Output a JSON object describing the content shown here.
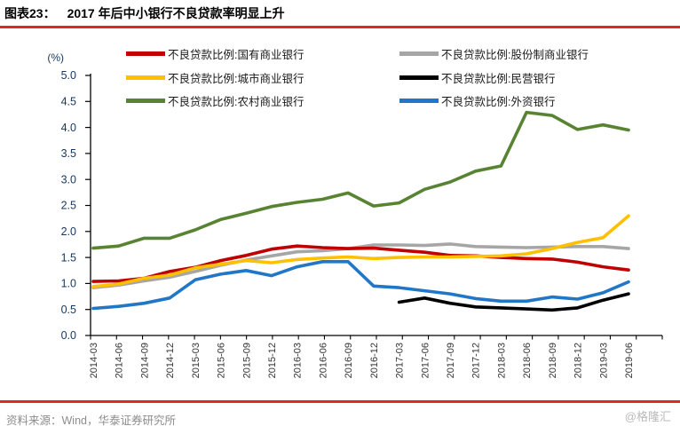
{
  "page": {
    "background": "#ffffff",
    "accent_rule_color": "#e02b14"
  },
  "header": {
    "label": "图表23：",
    "title": "2017 年后中小银行不良贷款率明显上升"
  },
  "footer": {
    "source": "资料来源：Wind，华泰证券研究所",
    "watermark": "@格隆汇"
  },
  "chart_data": {
    "type": "line",
    "title": "2017 年后中小银行不良贷款率明显上升",
    "unit_label": "(%)",
    "ylim": [
      0.0,
      5.0
    ],
    "ytick_step": 0.5,
    "grid": false,
    "legend_position": "top",
    "axis_color": "#000000",
    "ylabel_color": "#17365d",
    "xlabel_color": "#333333",
    "categories": [
      "2014-03",
      "2014-06",
      "2014-09",
      "2014-12",
      "2015-03",
      "2015-06",
      "2015-09",
      "2015-12",
      "2016-03",
      "2016-06",
      "2016-09",
      "2016-12",
      "2017-03",
      "2017-06",
      "2017-09",
      "2017-12",
      "2018-03",
      "2018-06",
      "2018-09",
      "2018-12",
      "2019-03",
      "2019-06"
    ],
    "series": [
      {
        "key": "state-owned",
        "name": "不良贷款比例:国有商业银行",
        "color": "#c00000",
        "values": [
          1.04,
          1.05,
          1.1,
          1.23,
          1.31,
          1.44,
          1.54,
          1.66,
          1.72,
          1.69,
          1.67,
          1.68,
          1.64,
          1.6,
          1.54,
          1.53,
          1.5,
          1.48,
          1.47,
          1.41,
          1.32,
          1.26
        ]
      },
      {
        "key": "city",
        "name": "不良贷款比例:城市商业银行",
        "color": "#ffc000",
        "values": [
          0.94,
          0.99,
          1.1,
          1.16,
          1.3,
          1.37,
          1.44,
          1.4,
          1.46,
          1.49,
          1.51,
          1.48,
          1.5,
          1.51,
          1.51,
          1.52,
          1.53,
          1.57,
          1.67,
          1.79,
          1.88,
          2.3
        ]
      },
      {
        "key": "rural",
        "name": "不良贷款比例:农村商业银行",
        "color": "#578332",
        "values": [
          1.68,
          1.72,
          1.87,
          1.87,
          2.03,
          2.23,
          2.35,
          2.48,
          2.56,
          2.62,
          2.74,
          2.49,
          2.55,
          2.81,
          2.95,
          3.16,
          3.26,
          4.29,
          4.23,
          3.96,
          4.05,
          3.95
        ]
      },
      {
        "key": "joint-stock",
        "name": "不良贷款比例:股份制商业银行",
        "color": "#a6a6a6",
        "values": [
          0.92,
          0.97,
          1.05,
          1.12,
          1.23,
          1.35,
          1.45,
          1.53,
          1.61,
          1.63,
          1.67,
          1.74,
          1.74,
          1.73,
          1.76,
          1.71,
          1.7,
          1.69,
          1.7,
          1.71,
          1.71,
          1.67
        ]
      },
      {
        "key": "private",
        "name": "不良贷款比例:民营银行",
        "color": "#000000",
        "values": [
          null,
          null,
          null,
          null,
          null,
          null,
          null,
          null,
          null,
          null,
          null,
          null,
          0.64,
          0.72,
          0.62,
          0.55,
          0.53,
          0.51,
          0.49,
          0.53,
          0.68,
          0.8
        ]
      },
      {
        "key": "foreign",
        "name": "不良贷款比例:外资银行",
        "color": "#2176c7",
        "values": [
          0.52,
          0.56,
          0.62,
          0.72,
          1.07,
          1.18,
          1.25,
          1.15,
          1.32,
          1.42,
          1.42,
          0.95,
          0.92,
          0.86,
          0.8,
          0.71,
          0.66,
          0.66,
          0.74,
          0.7,
          0.82,
          1.03
        ]
      }
    ],
    "legend_columns": [
      [
        "state-owned",
        "city",
        "rural"
      ],
      [
        "joint-stock",
        "private",
        "foreign"
      ]
    ],
    "draw_order": [
      "joint-stock",
      "state-owned",
      "city",
      "foreign",
      "private",
      "rural"
    ]
  }
}
